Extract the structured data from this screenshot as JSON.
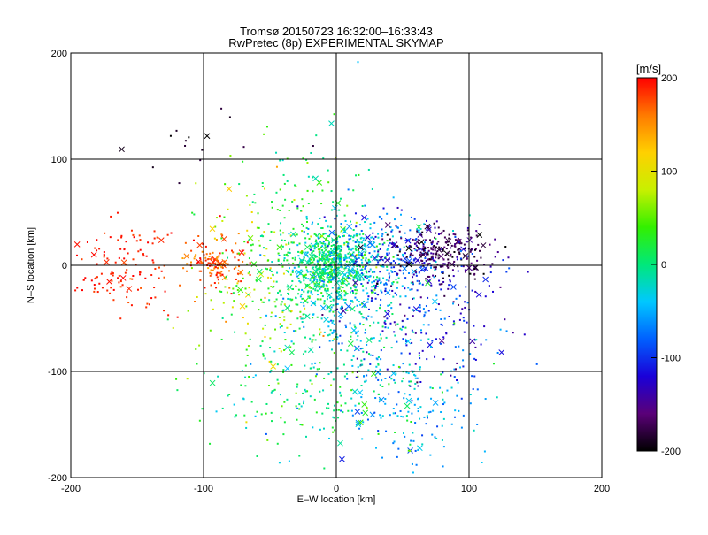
{
  "chart_data": {
    "type": "scatter",
    "title": "Tromsø 20150723 16:32:00–16:33:43",
    "subtitle": "RwPretec (8p) EXPERIMENTAL SKYMAP",
    "xlabel": "E–W location [km]",
    "ylabel": "N–S location [km]",
    "xlim": [
      -200,
      200
    ],
    "ylim": [
      -200,
      200
    ],
    "xticks": [
      "-200",
      "-100",
      "0",
      "100",
      "200"
    ],
    "yticks": [
      "-200",
      "-100",
      "0",
      "100",
      "200"
    ],
    "reference_lines_x": [
      -100,
      0,
      100
    ],
    "reference_lines_y": [
      -100,
      0,
      100
    ],
    "grid": false,
    "colorbar": {
      "label": "[m/s]",
      "range": [
        -200,
        200
      ],
      "ticks": [
        "200",
        "100",
        "0",
        "-100",
        "-200"
      ],
      "colormap": [
        "#000000",
        "#5a0078",
        "#1a00d8",
        "#0060ff",
        "#00c8ff",
        "#00e87a",
        "#33f000",
        "#c8f000",
        "#ffd000",
        "#ff7a00",
        "#ff0000"
      ]
    },
    "markers": {
      "small": "dot",
      "large": "x"
    },
    "clusters": [
      {
        "cx": -160,
        "cy": -5,
        "sx": 25,
        "sy": 22,
        "n": 140,
        "v": 190,
        "vs": 10
      },
      {
        "cx": -90,
        "cy": 2,
        "sx": 12,
        "sy": 10,
        "n": 130,
        "v": 175,
        "vs": 20
      },
      {
        "cx": -60,
        "cy": -20,
        "sx": 25,
        "sy": 45,
        "n": 180,
        "v": 60,
        "vs": 40
      },
      {
        "cx": -25,
        "cy": 20,
        "sx": 25,
        "sy": 50,
        "n": 180,
        "v": 20,
        "vs": 25
      },
      {
        "cx": -5,
        "cy": 0,
        "sx": 15,
        "sy": 18,
        "n": 600,
        "v": 0,
        "vs": 30
      },
      {
        "cx": 10,
        "cy": -40,
        "sx": 25,
        "sy": 40,
        "n": 250,
        "v": -30,
        "vs": 30
      },
      {
        "cx": 25,
        "cy": 10,
        "sx": 22,
        "sy": 25,
        "n": 220,
        "v": -50,
        "vs": 30
      },
      {
        "cx": 45,
        "cy": 5,
        "sx": 18,
        "sy": 20,
        "n": 150,
        "v": -110,
        "vs": 30
      },
      {
        "cx": 80,
        "cy": 12,
        "sx": 18,
        "sy": 12,
        "n": 220,
        "v": -170,
        "vs": 20
      },
      {
        "cx": 70,
        "cy": -50,
        "sx": 30,
        "sy": 35,
        "n": 200,
        "v": -110,
        "vs": 30
      },
      {
        "cx": 60,
        "cy": -140,
        "sx": 25,
        "sy": 25,
        "n": 120,
        "v": -60,
        "vs": 25
      },
      {
        "cx": -20,
        "cy": -130,
        "sx": 40,
        "sy": 25,
        "n": 120,
        "v": 10,
        "vs": 30
      },
      {
        "cx": 20,
        "cy": -100,
        "sx": 40,
        "sy": 30,
        "n": 120,
        "v": -20,
        "vs": 40
      },
      {
        "cx": -100,
        "cy": 110,
        "sx": 25,
        "sy": 15,
        "n": 15,
        "v": -190,
        "vs": 10
      }
    ]
  }
}
